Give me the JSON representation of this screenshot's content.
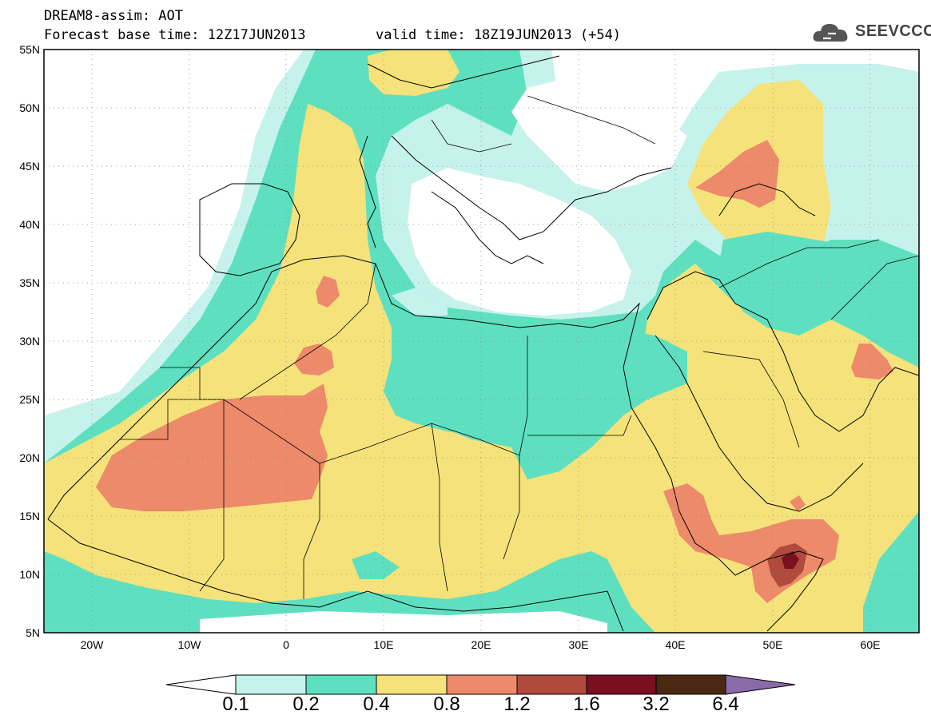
{
  "header": {
    "title": "DREAM8-assim: AOT",
    "base_time": "Forecast base time: 12Z17JUN2013",
    "valid_time": "valid time: 18Z19JUN2013 (+54)"
  },
  "logo": {
    "text": "SEEVCCC",
    "icon": "cloud-icon"
  },
  "axes": {
    "lat_labels": [
      "55N",
      "50N",
      "45N",
      "40N",
      "35N",
      "30N",
      "25N",
      "20N",
      "15N",
      "10N",
      "5N"
    ],
    "lon_labels": [
      "20W",
      "10W",
      "0",
      "10E",
      "20E",
      "30E",
      "40E",
      "50E",
      "60E"
    ]
  },
  "colorbar": {
    "labels": [
      "0.1",
      "0.2",
      "0.4",
      "0.8",
      "1.2",
      "1.6",
      "3.2",
      "6.4"
    ],
    "colors": [
      "#c6f2ec",
      "#5ee0c0",
      "#f5e27a",
      "#ec8a6a",
      "#b04a3c",
      "#7a0f1f",
      "#4a2812",
      "#8a6aa8"
    ]
  },
  "legend_levels": {
    "very_low": "#c6f2ec",
    "low": "#5ee0c0",
    "mid": "#f5e27a",
    "high": "#ec8a6a",
    "very_high": "#b04a3c"
  }
}
